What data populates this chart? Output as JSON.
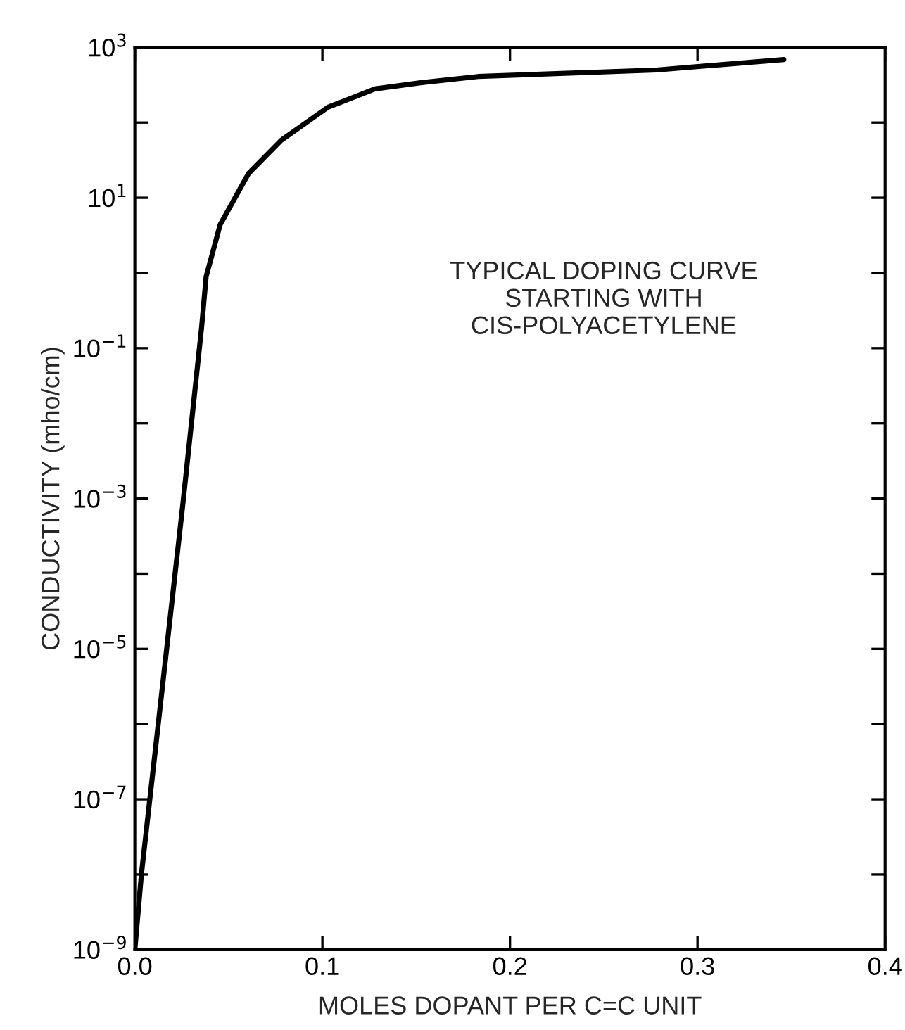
{
  "chart_data": {
    "type": "line",
    "xlabel": "MOLES DOPANT PER C=C UNIT",
    "ylabel": "CONDUCTIVITY (mho/cm)",
    "annotations": [
      "TYPICAL DOPING CURVE\nSTARTING WITH\nCIS-POLYACETYLENE"
    ],
    "x": [
      0,
      0.0035,
      0.0255,
      0.0356,
      0.038,
      0.0455,
      0.0606,
      0.078,
      0.103,
      0.128,
      0.153,
      0.183,
      0.278,
      0.346
    ],
    "series": [
      {
        "color": "#000000",
        "values": [
          1e-09,
          1e-08,
          0.0008,
          0.19,
          0.89,
          4.4,
          21,
          58,
          160,
          280,
          340,
          410,
          500,
          690
        ]
      }
    ],
    "log": "y",
    "xlim": [
      0,
      0.4
    ],
    "ylim": [
      1e-09,
      1000
    ],
    "xticks": [
      {
        "value": 0,
        "label": "0.0"
      },
      0.1,
      0.2,
      0.3,
      0.4
    ],
    "yticks": [
      {
        "value": 1e-09,
        "label": "10$^{−9}$"
      },
      {
        "value": 1e-08,
        "label": null
      },
      {
        "value": 1e-07,
        "label": "10$^{−7}$"
      },
      {
        "value": 1e-06,
        "label": null
      },
      {
        "value": 1e-05,
        "label": "10$^{−5}$"
      },
      {
        "value": 0.0001,
        "label": null
      },
      {
        "value": 0.001,
        "label": "10$^{−3}$"
      },
      {
        "value": 0.01,
        "label": null
      },
      {
        "value": 0.1,
        "label": "10$^{−1}$"
      },
      {
        "value": 1,
        "label": null
      },
      {
        "value": 10,
        "label": "10$^{1}$"
      },
      {
        "value": 100,
        "label": null
      },
      {
        "value": 1000,
        "label": "10$^{3}$"
      }
    ],
    "grid": false,
    "legend": false,
    "marker": "none",
    "line_style": "solid"
  }
}
